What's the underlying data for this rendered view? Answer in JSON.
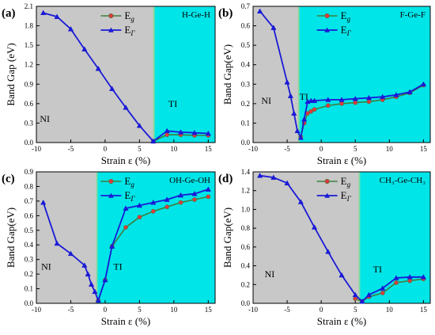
{
  "colors": {
    "ni_region": "#c8c8c8",
    "ti_region": "#00e5e8",
    "boundary": "#8ad7a0",
    "eg_line": "#3f7f3f",
    "eg_marker": "#e0393e",
    "egamma": "#1a1ad6",
    "eg_marker_shape": "circle",
    "egamma_marker_shape": "triangle-up"
  },
  "chart_data": [
    {
      "type": "line",
      "panel": "(a)",
      "material": "H-Ge-H",
      "ylabel": "Band Gap (eV)",
      "xlabel": "Strain ε (%)",
      "xlim": [
        -10,
        16
      ],
      "ylim": [
        0,
        2.1
      ],
      "xticks": [
        "-10",
        "-5",
        "0",
        "5",
        "10",
        "15"
      ],
      "yticks": [
        "0.0",
        "0.3",
        "0.6",
        "0.9",
        "1.2",
        "1.5",
        "1.8",
        "2.1"
      ],
      "tick_vals_x": [
        -10,
        -5,
        0,
        5,
        10,
        15
      ],
      "tick_vals_y": [
        0,
        0.3,
        0.6,
        0.9,
        1.2,
        1.5,
        1.8,
        2.1
      ],
      "transition_x": 7.1,
      "regions": [
        "NI",
        "TI"
      ],
      "region_label_pos": {
        "NI": [
          -9.5,
          0.32
        ],
        "TI": [
          9.2,
          0.55
        ]
      },
      "legend": {
        "placement": "top-center",
        "entries": [
          "E_g",
          "E_Γ"
        ]
      },
      "series": [
        {
          "name": "E_g",
          "x": [
            7,
            9,
            11,
            13,
            15
          ],
          "y": [
            0.02,
            0.12,
            0.12,
            0.11,
            0.11
          ]
        },
        {
          "name": "E_Γ",
          "x": [
            -9,
            -7,
            -5,
            -3,
            -1,
            1,
            3,
            5,
            7,
            9,
            11,
            13,
            15
          ],
          "y": [
            2.0,
            1.94,
            1.75,
            1.44,
            1.14,
            0.83,
            0.54,
            0.26,
            0.02,
            0.18,
            0.16,
            0.15,
            0.14
          ]
        }
      ]
    },
    {
      "type": "line",
      "panel": "(b)",
      "material": "F-Ge-F",
      "ylabel": "Band Gap(eV)",
      "xlabel": "Strain ε (%)",
      "xlim": [
        -10,
        16
      ],
      "ylim": [
        0,
        0.7
      ],
      "xticks": [
        "-10",
        "-5",
        "0",
        "5",
        "10",
        "15"
      ],
      "yticks": [
        "0.0",
        "0.1",
        "0.2",
        "0.3",
        "0.4",
        "0.5",
        "0.6",
        "0.7"
      ],
      "tick_vals_x": [
        -10,
        -5,
        0,
        5,
        10,
        15
      ],
      "tick_vals_y": [
        0,
        0.1,
        0.2,
        0.3,
        0.4,
        0.5,
        0.6,
        0.7
      ],
      "transition_x": -3.3,
      "regions": [
        "NI",
        "TI"
      ],
      "region_label_pos": {
        "NI": [
          -8.8,
          0.2
        ],
        "TI": [
          -3.2,
          0.22
        ]
      },
      "legend": {
        "placement": "top-center",
        "entries": [
          "E_g",
          "E_Γ"
        ]
      },
      "series": [
        {
          "name": "E_g",
          "x": [
            -3,
            -2.5,
            -2,
            -1.5,
            -1,
            1,
            3,
            5,
            7,
            9,
            11,
            13,
            15
          ],
          "y": [
            0.03,
            0.1,
            0.15,
            0.16,
            0.17,
            0.19,
            0.2,
            0.205,
            0.21,
            0.22,
            0.235,
            0.255,
            0.295
          ]
        },
        {
          "name": "E_Γ",
          "x": [
            -9,
            -7,
            -5,
            -4.5,
            -4,
            -3.5,
            -3,
            -2.5,
            -2,
            -1.5,
            -1,
            1,
            3,
            5,
            7,
            9,
            11,
            13,
            15
          ],
          "y": [
            0.675,
            0.59,
            0.31,
            0.24,
            0.15,
            0.06,
            0.025,
            0.12,
            0.21,
            0.215,
            0.215,
            0.22,
            0.22,
            0.225,
            0.23,
            0.235,
            0.245,
            0.26,
            0.3
          ]
        }
      ]
    },
    {
      "type": "line",
      "panel": "(c)",
      "material": "OH-Ge-OH",
      "ylabel": "Band Gap(eV)",
      "xlabel": "Strain ε (%)",
      "xlim": [
        -10,
        16
      ],
      "ylim": [
        0,
        0.9
      ],
      "xticks": [
        "-10",
        "-5",
        "0",
        "5",
        "10",
        "15"
      ],
      "yticks": [
        "0.0",
        "0.1",
        "0.2",
        "0.3",
        "0.4",
        "0.5",
        "0.6",
        "0.7",
        "0.8",
        "0.9"
      ],
      "tick_vals_x": [
        -10,
        -5,
        0,
        5,
        10,
        15
      ],
      "tick_vals_y": [
        0,
        0.1,
        0.2,
        0.3,
        0.4,
        0.5,
        0.6,
        0.7,
        0.8,
        0.9
      ],
      "transition_x": -1.2,
      "regions": [
        "NI",
        "TI"
      ],
      "region_label_pos": {
        "NI": [
          -9.3,
          0.23
        ],
        "TI": [
          1.2,
          0.23
        ]
      },
      "legend": {
        "placement": "top-center",
        "entries": [
          "E_g",
          "E_Γ"
        ]
      },
      "series": [
        {
          "name": "E_g",
          "x": [
            -1,
            0,
            1,
            3,
            5,
            7,
            9,
            11,
            13,
            15
          ],
          "y": [
            0.02,
            0.16,
            0.39,
            0.52,
            0.59,
            0.63,
            0.66,
            0.69,
            0.71,
            0.73
          ]
        },
        {
          "name": "E_Γ",
          "x": [
            -9,
            -7,
            -5,
            -3,
            -2.5,
            -2,
            -1.5,
            -1,
            0,
            1,
            3,
            5,
            7,
            9,
            11,
            13,
            15
          ],
          "y": [
            0.69,
            0.41,
            0.34,
            0.26,
            0.2,
            0.13,
            0.08,
            0.02,
            0.16,
            0.39,
            0.65,
            0.67,
            0.69,
            0.71,
            0.74,
            0.75,
            0.78
          ]
        }
      ]
    },
    {
      "type": "line",
      "panel": "(d)",
      "material": "CH₃-Ge-CH₃",
      "ylabel": "Band Gap(eV)",
      "xlabel": "Strain ε (%)",
      "xlim": [
        -10,
        16
      ],
      "ylim": [
        0,
        1.4
      ],
      "xticks": [
        "-10",
        "-5",
        "0",
        "5",
        "10",
        "15"
      ],
      "yticks": [
        "0.0",
        "0.2",
        "0.4",
        "0.6",
        "0.8",
        "1.0",
        "1.2",
        "1.4"
      ],
      "tick_vals_x": [
        -10,
        -5,
        0,
        5,
        10,
        15
      ],
      "tick_vals_y": [
        0,
        0.2,
        0.4,
        0.6,
        0.8,
        1.0,
        1.2,
        1.4
      ],
      "transition_x": 5.6,
      "regions": [
        "NI",
        "TI"
      ],
      "region_label_pos": {
        "NI": [
          -8.3,
          0.28
        ],
        "TI": [
          7.6,
          0.33
        ]
      },
      "legend": {
        "placement": "top-center",
        "entries": [
          "E_g",
          "E_Γ"
        ]
      },
      "series": [
        {
          "name": "E_g",
          "x": [
            5,
            6,
            7,
            9,
            11,
            13,
            15
          ],
          "y": [
            0.05,
            0.02,
            0.07,
            0.11,
            0.22,
            0.24,
            0.26
          ]
        },
        {
          "name": "E_Γ",
          "x": [
            -9,
            -7,
            -5,
            -3,
            -1,
            1,
            3,
            5,
            6,
            7,
            9,
            11,
            13,
            15
          ],
          "y": [
            1.36,
            1.34,
            1.28,
            1.08,
            0.81,
            0.55,
            0.3,
            0.09,
            0.02,
            0.09,
            0.16,
            0.27,
            0.28,
            0.28
          ]
        }
      ]
    }
  ]
}
